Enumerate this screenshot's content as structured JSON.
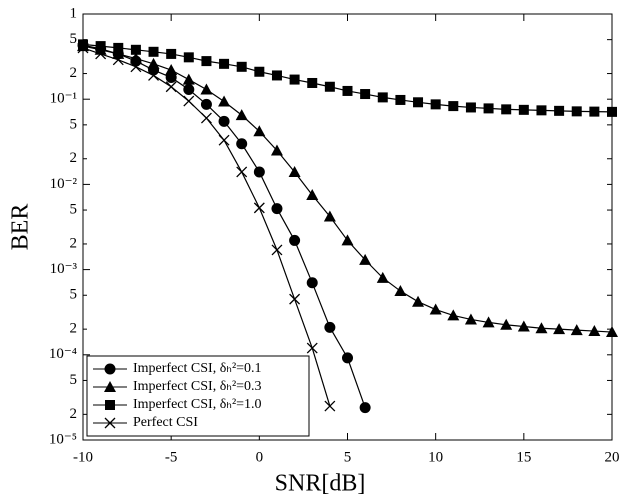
{
  "chart_data": {
    "type": "line",
    "yscale": "log",
    "xlabel": "SNR[dB]",
    "ylabel": "BER",
    "x": [
      -10,
      -9,
      -8,
      -7,
      -6,
      -5,
      -4,
      -3,
      -2,
      -1,
      0,
      1,
      2,
      3,
      4,
      5,
      6,
      7,
      8,
      9,
      10,
      11,
      12,
      13,
      14,
      15,
      16,
      17,
      18,
      19,
      20
    ],
    "xlim": [
      -10,
      20
    ],
    "xticks": [
      -10,
      -5,
      0,
      5,
      10,
      15,
      20
    ],
    "ylim": [
      1e-05,
      1
    ],
    "yticks": [
      1,
      {
        "value": 0.5,
        "label": "5"
      },
      {
        "value": 0.2,
        "label": "2"
      },
      {
        "value": 0.1,
        "label": "10⁻¹"
      },
      {
        "value": 0.05,
        "label": "5"
      },
      {
        "value": 0.02,
        "label": "2"
      },
      {
        "value": 0.01,
        "label": "10⁻²"
      },
      {
        "value": 0.005,
        "label": "5"
      },
      {
        "value": 0.002,
        "label": "2"
      },
      {
        "value": 0.001,
        "label": "10⁻³"
      },
      {
        "value": 0.0005,
        "label": "5"
      },
      {
        "value": 0.0002,
        "label": "2"
      },
      {
        "value": 0.0001,
        "label": "10⁻⁴"
      },
      {
        "value": 5e-05,
        "label": "5"
      },
      {
        "value": 2e-05,
        "label": "2"
      },
      {
        "value": 1e-05,
        "label": "10⁻⁵"
      }
    ],
    "legend": "lower left",
    "series": [
      {
        "name": "Imperfect CSI, δₕ²=0.1",
        "color": "#000000",
        "marker": "circle",
        "values": [
          0.43,
          0.39,
          0.34,
          0.28,
          0.22,
          0.18,
          0.13,
          0.087,
          0.055,
          0.03,
          0.014,
          0.0052,
          0.0022,
          0.0007,
          0.00021,
          9.2e-05,
          2.4e-05,
          null,
          null,
          null,
          null,
          null,
          null,
          null,
          null,
          null,
          null,
          null,
          null,
          null,
          null
        ]
      },
      {
        "name": "Imperfect CSI, δₕ²=0.3",
        "color": "#000000",
        "marker": "triangle",
        "values": [
          0.42,
          0.38,
          0.34,
          0.3,
          0.26,
          0.22,
          0.17,
          0.13,
          0.094,
          0.065,
          0.042,
          0.025,
          0.014,
          0.0075,
          0.0042,
          0.0022,
          0.0013,
          0.0008,
          0.00056,
          0.00042,
          0.00034,
          0.00029,
          0.00026,
          0.00024,
          0.000225,
          0.000215,
          0.000205,
          0.0002,
          0.000195,
          0.00019,
          0.000185
        ]
      },
      {
        "name": "Imperfect CSI, δₕ²=1.0",
        "color": "#000000",
        "marker": "square",
        "values": [
          0.44,
          0.42,
          0.4,
          0.38,
          0.36,
          0.34,
          0.31,
          0.28,
          0.26,
          0.24,
          0.21,
          0.19,
          0.17,
          0.155,
          0.14,
          0.125,
          0.115,
          0.105,
          0.098,
          0.092,
          0.087,
          0.083,
          0.08,
          0.078,
          0.076,
          0.075,
          0.074,
          0.073,
          0.072,
          0.0715,
          0.071
        ]
      },
      {
        "name": "Perfect CSI",
        "color": "#000000",
        "marker": "x",
        "values": [
          0.4,
          0.34,
          0.29,
          0.24,
          0.19,
          0.14,
          0.095,
          0.06,
          0.033,
          0.014,
          0.0053,
          0.0017,
          0.00045,
          0.00012,
          2.5e-05,
          null,
          null,
          null,
          null,
          null,
          null,
          null,
          null,
          null,
          null,
          null,
          null,
          null,
          null,
          null,
          null
        ]
      }
    ]
  }
}
